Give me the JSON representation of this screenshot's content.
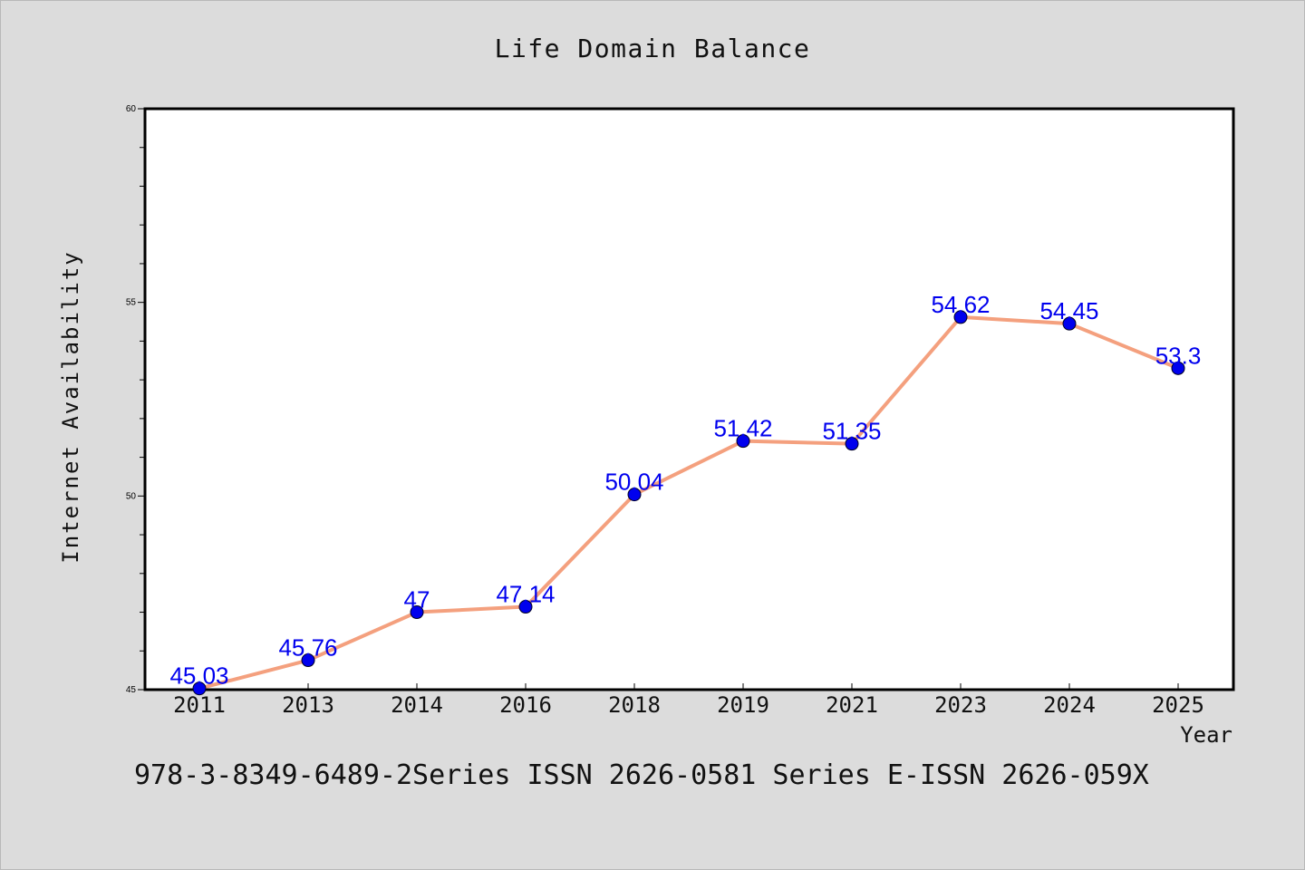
{
  "chart_data": {
    "type": "line",
    "title": "Life Domain Balance",
    "xlabel": "Year",
    "ylabel": "Internet Availability",
    "categories": [
      "2011",
      "2013",
      "2014",
      "2016",
      "2018",
      "2019",
      "2021",
      "2023",
      "2024",
      "2025"
    ],
    "series": [
      {
        "values": [
          45.03,
          45.76,
          47,
          47.14,
          50.04,
          51.42,
          51.35,
          54.62,
          54.45,
          53.3
        ],
        "data_labels": [
          "45.03",
          "45.76",
          "47",
          "47.14",
          "50.04",
          "51.42",
          "51.35",
          "54.62",
          "54.45",
          "53.3"
        ]
      }
    ],
    "ylim": [
      45,
      60
    ],
    "y_ticks": [
      "45",
      "50",
      "55",
      "60"
    ],
    "grid": false,
    "colors": {
      "line": "#f4a07e",
      "marker": "#0000ee",
      "data_label": "#0000ee",
      "plot_background": "#ffffff",
      "page_background": "#dcdcdc"
    }
  },
  "footer": {
    "isbn_text": "978-3-8349-6489-2Series ISSN 2626-0581 Series E-ISSN 2626-059X"
  }
}
